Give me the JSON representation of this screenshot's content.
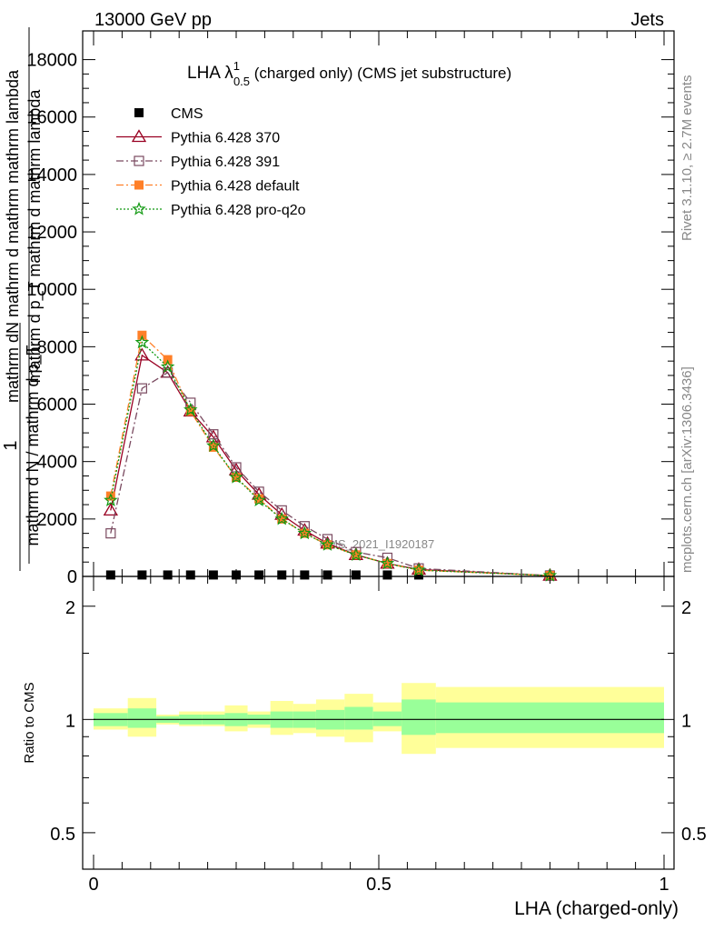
{
  "header": {
    "left": "13000 GeV pp",
    "right": "Jets"
  },
  "side_texts": {
    "rivet": "Rivet 3.1.10, ≥ 2.7M events",
    "mcplots": "mcplots.cern.ch [arXiv:1306.3436]"
  },
  "watermark": "CMS_2021_I1920187",
  "chart_data": [
    {
      "type": "line",
      "title_main": "LHA λ",
      "title_sup": "1",
      "title_sub": "0.5",
      "title_rest": " (charged only) (CMS jet substructure)",
      "ylabel_num": "mathrm dN mathrm d mathrm mathrm lambda",
      "ylabel_num2": "mathrm d p_T mathrm d mathrm lambda",
      "ylabel_one": "1",
      "ylabel_den": "mathrm d N / mathrm d p_T",
      "ylim": [
        0,
        19000
      ],
      "yticks": [
        0,
        2000,
        4000,
        6000,
        8000,
        10000,
        12000,
        14000,
        16000,
        18000
      ],
      "ytick_labels": [
        "0",
        "2000",
        "4000",
        "6000",
        "8000",
        "10000",
        "12000",
        "14000",
        "16000",
        "18000"
      ],
      "x": [
        0.03,
        0.085,
        0.13,
        0.17,
        0.21,
        0.25,
        0.29,
        0.33,
        0.37,
        0.41,
        0.46,
        0.515,
        0.57,
        0.8
      ],
      "series": [
        {
          "name": "CMS",
          "color": "#000000",
          "marker": "square-filled",
          "values": [
            50,
            50,
            50,
            50,
            50,
            50,
            50,
            50,
            50,
            50,
            50,
            50,
            50,
            50
          ]
        },
        {
          "name": "Pythia 6.428 370",
          "color": "#990022",
          "marker": "triangle-open",
          "dash": "",
          "values": [
            2300,
            7700,
            7100,
            5750,
            4850,
            3700,
            2850,
            2150,
            1600,
            1150,
            750,
            450,
            240,
            30
          ]
        },
        {
          "name": "Pythia 6.428 391",
          "color": "#7a4a60",
          "marker": "square-open",
          "dash": "8,3,2,3",
          "values": [
            1500,
            6550,
            7100,
            6050,
            4950,
            3800,
            2950,
            2300,
            1750,
            1300,
            850,
            650,
            280,
            30
          ]
        },
        {
          "name": "Pythia 6.428 default",
          "color": "#ff7f27",
          "marker": "square-filled",
          "dash": "8,3,2,3",
          "values": [
            2800,
            8400,
            7550,
            5750,
            4500,
            3450,
            2700,
            2000,
            1500,
            1100,
            750,
            450,
            220,
            30
          ]
        },
        {
          "name": "Pythia 6.428 pro-q2o",
          "color": "#119911",
          "marker": "star-open",
          "dash": "2,2",
          "values": [
            2650,
            8150,
            7300,
            5800,
            4550,
            3450,
            2650,
            2000,
            1500,
            1100,
            750,
            450,
            220,
            30
          ]
        }
      ]
    },
    {
      "type": "area",
      "ylabel": "Ratio to CMS",
      "xlabel": "LHA (charged-only)",
      "xlim": [
        0,
        1
      ],
      "xticks": [
        0,
        0.5,
        1
      ],
      "xtick_labels": [
        "0",
        "0.5",
        "1"
      ],
      "ylim": [
        0.4,
        2.4
      ],
      "ylog": true,
      "yticks": [
        0.5,
        1,
        2
      ],
      "ytick_labels": [
        "0.5",
        "1",
        "2"
      ],
      "reference": 1.0,
      "band_colors": {
        "inner": "#99ff99",
        "outer": "#ffff99"
      },
      "bins": [
        {
          "x0": 0.0,
          "x1": 0.06,
          "inner": [
            0.96,
            1.04
          ],
          "outer": [
            0.94,
            1.07
          ]
        },
        {
          "x0": 0.06,
          "x1": 0.11,
          "inner": [
            0.95,
            1.07
          ],
          "outer": [
            0.9,
            1.14
          ]
        },
        {
          "x0": 0.11,
          "x1": 0.15,
          "inner": [
            0.98,
            1.02
          ],
          "outer": [
            0.97,
            1.03
          ]
        },
        {
          "x0": 0.15,
          "x1": 0.19,
          "inner": [
            0.97,
            1.03
          ],
          "outer": [
            0.96,
            1.05
          ]
        },
        {
          "x0": 0.19,
          "x1": 0.23,
          "inner": [
            0.97,
            1.03
          ],
          "outer": [
            0.96,
            1.05
          ]
        },
        {
          "x0": 0.23,
          "x1": 0.27,
          "inner": [
            0.96,
            1.04
          ],
          "outer": [
            0.93,
            1.09
          ]
        },
        {
          "x0": 0.27,
          "x1": 0.31,
          "inner": [
            0.97,
            1.03
          ],
          "outer": [
            0.95,
            1.05
          ]
        },
        {
          "x0": 0.31,
          "x1": 0.35,
          "inner": [
            0.95,
            1.05
          ],
          "outer": [
            0.91,
            1.12
          ]
        },
        {
          "x0": 0.35,
          "x1": 0.39,
          "inner": [
            0.95,
            1.05
          ],
          "outer": [
            0.92,
            1.1
          ]
        },
        {
          "x0": 0.39,
          "x1": 0.44,
          "inner": [
            0.94,
            1.06
          ],
          "outer": [
            0.9,
            1.13
          ]
        },
        {
          "x0": 0.44,
          "x1": 0.49,
          "inner": [
            0.94,
            1.08
          ],
          "outer": [
            0.87,
            1.17
          ]
        },
        {
          "x0": 0.49,
          "x1": 0.54,
          "inner": [
            0.96,
            1.05
          ],
          "outer": [
            0.93,
            1.11
          ]
        },
        {
          "x0": 0.54,
          "x1": 0.6,
          "inner": [
            0.91,
            1.13
          ],
          "outer": [
            0.81,
            1.25
          ]
        },
        {
          "x0": 0.6,
          "x1": 1.0,
          "inner": [
            0.92,
            1.11
          ],
          "outer": [
            0.84,
            1.22
          ]
        }
      ]
    }
  ]
}
